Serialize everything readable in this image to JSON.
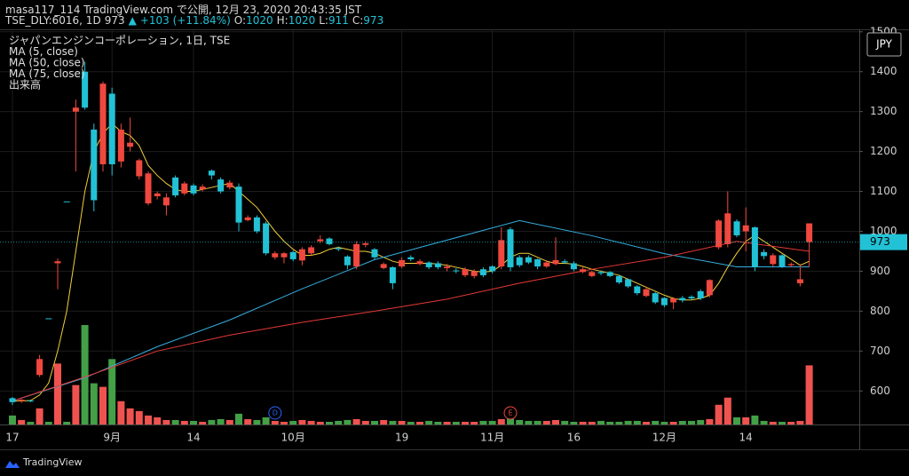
{
  "header": {
    "published": "masa117_114 TradingView.com で公開, 12月 23, 2020 20:43:35 JST",
    "symbol": "TSE_DLY:6016, 1D",
    "last": 973,
    "arrow": "▲",
    "change": "+103 (+11.84%)",
    "ohlc": [
      {
        "label": "O:",
        "value": 1020
      },
      {
        "label": "H:",
        "value": 1020
      },
      {
        "label": "L:",
        "value": 911
      },
      {
        "label": "C:",
        "value": 973
      }
    ]
  },
  "footer": "TradingView",
  "chart_data": {
    "type": "candlestick",
    "title": "ジャパンエンジンコーポレーション, 1日, TSE",
    "currency": "JPY",
    "categories": [
      "17",
      null,
      null,
      null,
      null,
      null,
      null,
      null,
      null,
      null,
      null,
      "9月",
      null,
      null,
      null,
      null,
      null,
      null,
      null,
      null,
      "14",
      null,
      null,
      null,
      null,
      null,
      null,
      null,
      null,
      null,
      null,
      "10月",
      null,
      null,
      null,
      null,
      null,
      null,
      null,
      null,
      null,
      null,
      null,
      "19",
      null,
      null,
      null,
      null,
      null,
      null,
      null,
      null,
      null,
      "11月",
      null,
      null,
      null,
      null,
      null,
      null,
      null,
      null,
      "16",
      null,
      null,
      null,
      null,
      null,
      null,
      null,
      null,
      null,
      "12月",
      null,
      null,
      null,
      null,
      null,
      null,
      null,
      null,
      "14",
      null,
      null,
      null,
      null,
      null,
      null,
      null
    ],
    "open": [
      572,
      578,
      575,
      680,
      782,
      925,
      1075,
      1310,
      1310,
      1078,
      1370,
      1168,
      1255,
      1222,
      1178,
      1145,
      1095,
      1085,
      1090,
      1120,
      1095,
      1112,
      1140,
      1100,
      1122,
      1022,
      1035,
      1000,
      945,
      945,
      945,
      930,
      955,
      960,
      980,
      968,
      955,
      915,
      968,
      970,
      935,
      918,
      870,
      928,
      930,
      925,
      910,
      910,
      912,
      900,
      905,
      900,
      890,
      900,
      978,
      910,
      915,
      922,
      912,
      922,
      928,
      922,
      905,
      905,
      898,
      895,
      888,
      872,
      862,
      845,
      855,
      822,
      815,
      832,
      827,
      832,
      832,
      878,
      1027,
      1045,
      990,
      1015,
      910,
      938,
      940,
      912,
      918,
      880,
      1020
    ],
    "high": [
      585,
      580,
      578,
      690,
      782,
      932,
      1075,
      1330,
      1425,
      1270,
      1375,
      1360,
      1270,
      1285,
      1182,
      1150,
      1100,
      1095,
      1140,
      1125,
      1120,
      1118,
      1155,
      1135,
      1128,
      1120,
      1040,
      1040,
      1025,
      950,
      948,
      952,
      960,
      965,
      990,
      985,
      962,
      940,
      975,
      975,
      958,
      922,
      912,
      935,
      940,
      930,
      925,
      925,
      918,
      908,
      910,
      905,
      910,
      915,
      1010,
      1010,
      940,
      940,
      932,
      928,
      985,
      930,
      925,
      910,
      902,
      902,
      900,
      890,
      882,
      865,
      860,
      848,
      835,
      835,
      838,
      840,
      855,
      880,
      1030,
      1100,
      1030,
      1060,
      1012,
      955,
      945,
      942,
      922,
      918,
      1020
    ],
    "low": [
      565,
      570,
      572,
      635,
      782,
      855,
      1075,
      1150,
      1305,
      1050,
      1150,
      1140,
      1160,
      1200,
      1130,
      1065,
      1080,
      1040,
      1085,
      1090,
      1090,
      1100,
      1130,
      1095,
      1105,
      1000,
      1025,
      995,
      940,
      930,
      920,
      925,
      915,
      940,
      970,
      965,
      950,
      905,
      905,
      960,
      930,
      905,
      855,
      908,
      925,
      915,
      905,
      905,
      900,
      895,
      885,
      882,
      885,
      895,
      905,
      900,
      910,
      918,
      905,
      908,
      915,
      918,
      900,
      895,
      885,
      890,
      885,
      868,
      858,
      840,
      835,
      818,
      810,
      805,
      822,
      828,
      828,
      835,
      955,
      960,
      985,
      950,
      900,
      930,
      912,
      908,
      910,
      862,
      911
    ],
    "close": [
      582,
      575,
      576,
      640,
      782,
      920,
      1075,
      1300,
      1400,
      1255,
      1168,
      1345,
      1175,
      1212,
      1138,
      1070,
      1088,
      1065,
      1135,
      1095,
      1115,
      1105,
      1152,
      1130,
      1110,
      1112,
      1028,
      1035,
      1020,
      935,
      935,
      948,
      927,
      945,
      975,
      982,
      958,
      937,
      912,
      966,
      955,
      908,
      910,
      912,
      935,
      918,
      922,
      920,
      908,
      902,
      890,
      888,
      905,
      912,
      912,
      1005,
      935,
      935,
      930,
      912,
      918,
      925,
      920,
      898,
      888,
      898,
      898,
      888,
      880,
      862,
      838,
      845,
      833,
      822,
      833,
      836,
      850,
      840,
      960,
      968,
      1025,
      1000,
      1010,
      948,
      918,
      940,
      915,
      870,
      973
    ],
    "up_color": "#22c2d6",
    "down_color": "#f0483e",
    "volume": {
      "name": "出来高",
      "up_color": "#43a047",
      "down_color": "#ef5350",
      "values": [
        100,
        50,
        30,
        180,
        30,
        680,
        30,
        440,
        1110,
        460,
        420,
        730,
        260,
        180,
        150,
        100,
        80,
        50,
        50,
        40,
        40,
        30,
        50,
        60,
        50,
        120,
        60,
        50,
        80,
        40,
        30,
        40,
        50,
        40,
        30,
        30,
        40,
        50,
        60,
        40,
        40,
        50,
        40,
        40,
        30,
        30,
        40,
        30,
        30,
        30,
        30,
        30,
        40,
        40,
        60,
        100,
        50,
        40,
        40,
        40,
        50,
        40,
        30,
        30,
        30,
        40,
        30,
        30,
        40,
        40,
        30,
        40,
        30,
        30,
        40,
        40,
        50,
        60,
        220,
        300,
        80,
        80,
        100,
        40,
        30,
        30,
        30,
        40,
        660
      ]
    },
    "moving_averages": [
      {
        "name": "MA (5, close)",
        "color": "#f2cf3a",
        "values": [
          575,
          575,
          576,
          590,
          620,
          700,
          800,
          950,
          1100,
          1200,
          1245,
          1270,
          1250,
          1240,
          1215,
          1165,
          1140,
          1120,
          1105,
          1100,
          1100,
          1105,
          1110,
          1115,
          1120,
          1100,
          1080,
          1060,
          1030,
          1000,
          975,
          955,
          940,
          940,
          945,
          955,
          960,
          955,
          950,
          950,
          945,
          935,
          925,
          920,
          920,
          920,
          920,
          918,
          915,
          910,
          905,
          900,
          898,
          900,
          915,
          935,
          945,
          945,
          935,
          925,
          920,
          920,
          918,
          912,
          905,
          900,
          895,
          890,
          880,
          870,
          860,
          850,
          840,
          832,
          828,
          828,
          832,
          840,
          870,
          910,
          945,
          975,
          990,
          975,
          960,
          945,
          930,
          915,
          925
        ]
      },
      {
        "name": "MA (50, close)",
        "color": "#35aee0",
        "x": [
          0,
          8,
          16,
          24,
          32,
          40,
          48,
          56,
          64,
          72,
          80,
          88
        ],
        "values": [
          575,
          633,
          711,
          778,
          856,
          929,
          978,
          1027,
          989,
          944,
          911,
          911
        ]
      },
      {
        "name": "MA (75, close)",
        "color": "#e53935",
        "x": [
          0,
          8,
          16,
          24,
          32,
          40,
          48,
          56,
          64,
          72,
          80,
          88
        ],
        "values": [
          575,
          635,
          700,
          740,
          772,
          800,
          830,
          870,
          905,
          935,
          975,
          950
        ]
      }
    ],
    "events": [
      {
        "label": "D",
        "x": 29,
        "color": "#2962ff"
      },
      {
        "label": "E",
        "x": 55,
        "color": "#f0483e"
      }
    ],
    "ylim": [
      516,
      1504
    ],
    "yticks": [
      600,
      700,
      800,
      900,
      1000,
      1100,
      1200,
      1300,
      1400,
      1500
    ],
    "grid": true
  }
}
